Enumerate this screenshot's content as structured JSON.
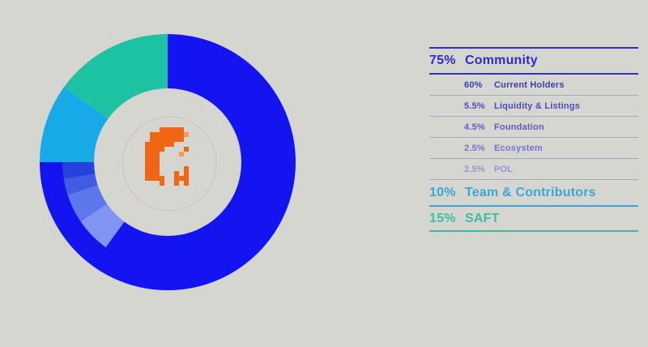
{
  "page": {
    "background": "#d6d6d0"
  },
  "chart_data": {
    "type": "donut",
    "units": "%",
    "direction": "clockwise",
    "start_angle_deg": 0,
    "legend_position": "right",
    "title": "",
    "segments": [
      {
        "label": "Community",
        "value": 75,
        "color": "#1414f0"
      },
      {
        "label": "Team & Contributors",
        "value": 10,
        "color": "#18aae8"
      },
      {
        "label": "SAFT",
        "value": 15,
        "color": "#1cc2a2"
      }
    ],
    "community_breakdown": [
      {
        "label": "Current Holders",
        "value": 60,
        "color": "#1414f0"
      },
      {
        "label": "Liquidity & Listings",
        "value": 5.5,
        "color": "#8095f2"
      },
      {
        "label": "Foundation",
        "value": 4.5,
        "color": "#5c78ea"
      },
      {
        "label": "Ecosystem",
        "value": 2.5,
        "color": "#3f5ce2"
      },
      {
        "label": "POL",
        "value": 2.5,
        "color": "#2642da"
      }
    ]
  },
  "center_logo": {
    "name": "pixel-flame-logo",
    "ring_color": "#c9c1b2",
    "pixel_colors": {
      "D": "#f06614",
      "L": "#f59a55"
    },
    "grid": [
      "...DDDDD..",
      ".DDDDDDDL.",
      ".DDDDDDD..",
      "DDDDDD....",
      "DDDD....D.",
      "DDD....L..",
      "DDD.......",
      "DDD.......",
      "DDD.....D.",
      "DDD...D.D.",
      "DDDD..DDD.",
      "...D..D.D."
    ]
  },
  "legend": {
    "sections": [
      {
        "id": "community",
        "pct": "75%",
        "label": "Community",
        "text_color": "#2d2dc8",
        "line_color": "#3232b8",
        "items": [
          {
            "pct": "60%",
            "label": "Current Holders",
            "text_color": "#3c3cb4"
          },
          {
            "pct": "5.5%",
            "label": "Liquidity & Listings",
            "text_color": "#4b4bba"
          },
          {
            "pct": "4.5%",
            "label": "Foundation",
            "text_color": "#5d5dc2"
          },
          {
            "pct": "2.5%",
            "label": "Ecosystem",
            "text_color": "#7575cc"
          },
          {
            "pct": "2.5%",
            "label": "POL",
            "text_color": "#9393d6"
          }
        ]
      },
      {
        "id": "team",
        "pct": "10%",
        "label": "Team & Contributors",
        "text_color": "#3aa6da",
        "line_color": "#3aa6da",
        "items": []
      },
      {
        "id": "saft",
        "pct": "15%",
        "label": "SAFT",
        "text_color": "#3dbda4",
        "line_color": "#35bfa2",
        "items": []
      }
    ]
  }
}
